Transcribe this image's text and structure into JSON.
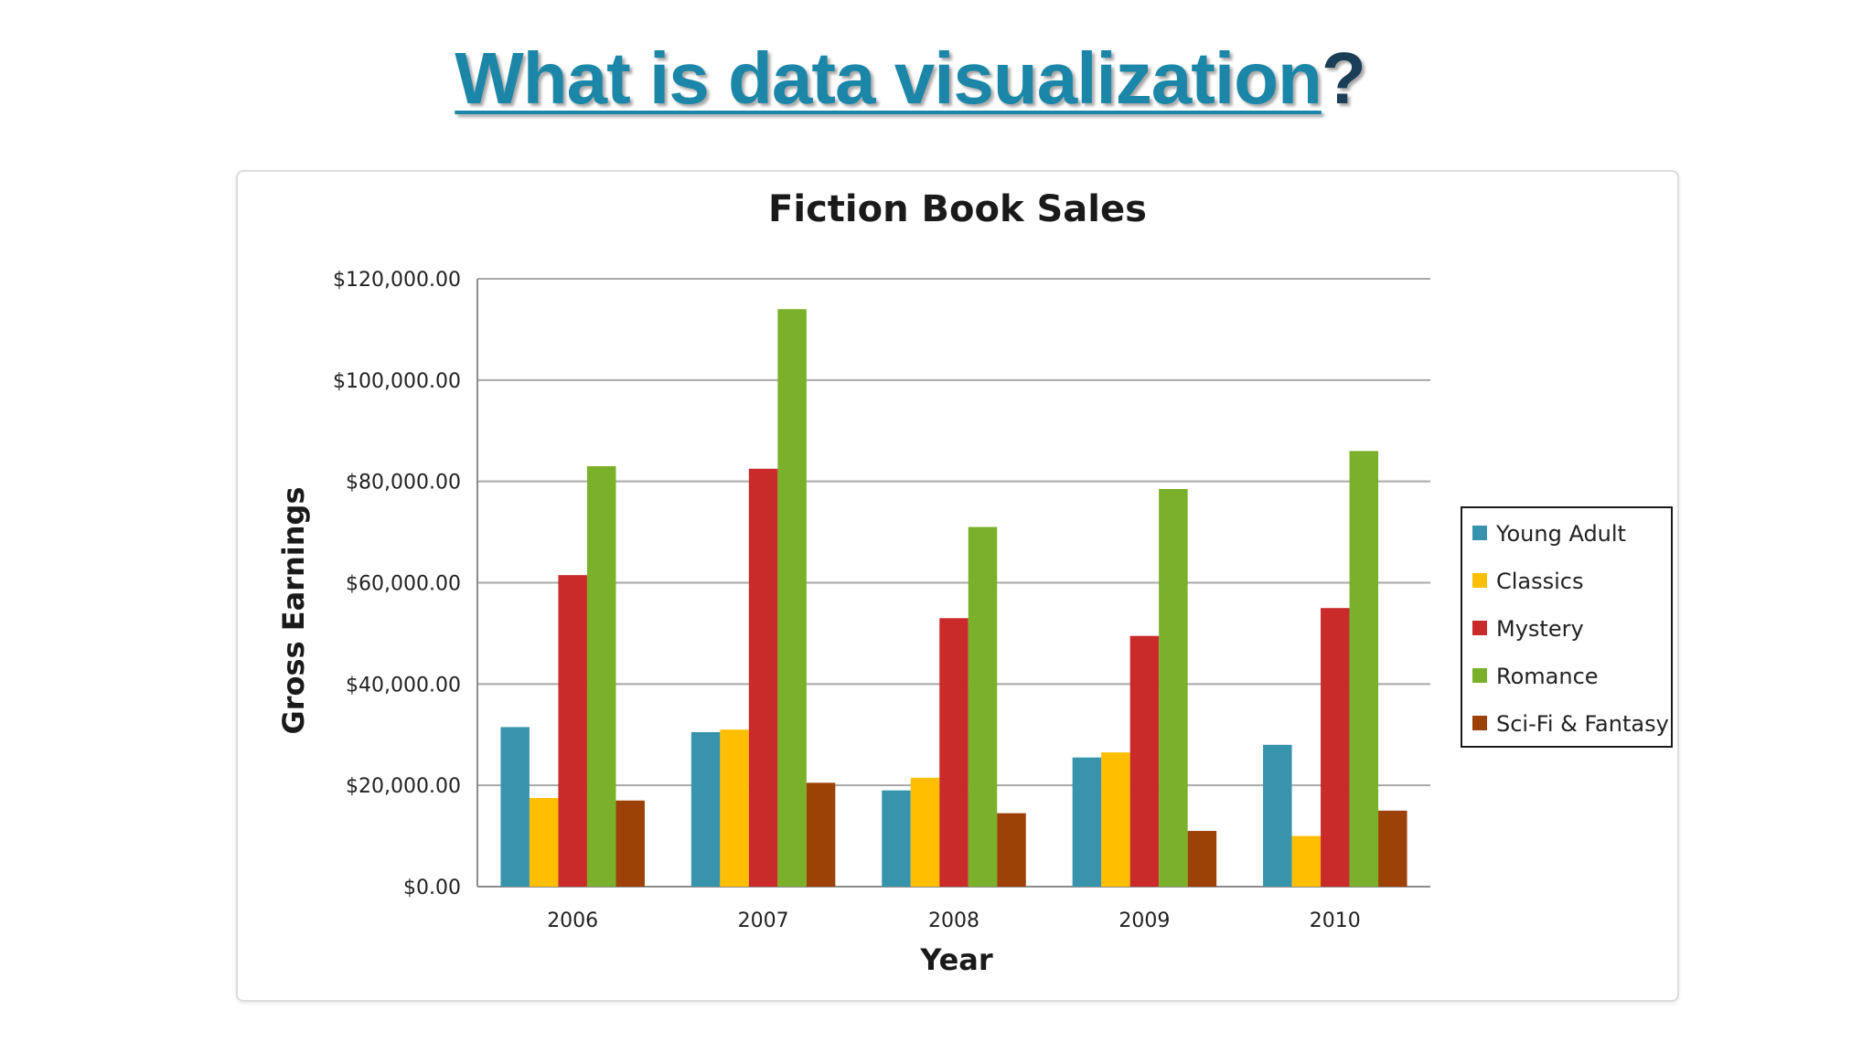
{
  "slide": {
    "title_link": "What is data visualization",
    "title_suffix": "?"
  },
  "chart_data": {
    "type": "bar",
    "title": "Fiction Book Sales",
    "xlabel": "Year",
    "ylabel": "Gross Earnings",
    "categories": [
      "2006",
      "2007",
      "2008",
      "2009",
      "2010"
    ],
    "ylim": [
      0,
      120000
    ],
    "yticks": [
      0,
      20000,
      40000,
      60000,
      80000,
      100000,
      120000
    ],
    "ytick_labels": [
      "$0.00",
      "$20,000.00",
      "$40,000.00",
      "$60,000.00",
      "$80,000.00",
      "$100,000.00",
      "$120,000.00"
    ],
    "grid": true,
    "legend_position": "right",
    "series": [
      {
        "name": "Young Adult",
        "color": "#3894ad",
        "values": [
          31500,
          30500,
          19000,
          25500,
          28000
        ]
      },
      {
        "name": "Classics",
        "color": "#ffbf00",
        "values": [
          17500,
          31000,
          21500,
          26500,
          10000
        ]
      },
      {
        "name": "Mystery",
        "color": "#c92a2a",
        "values": [
          61500,
          82500,
          53000,
          49500,
          55000
        ]
      },
      {
        "name": "Romance",
        "color": "#7bb02a",
        "values": [
          83000,
          114000,
          71000,
          78500,
          86000
        ]
      },
      {
        "name": "Sci-Fi & Fantasy",
        "color": "#9c4206",
        "values": [
          17000,
          20500,
          14500,
          11000,
          15000
        ]
      }
    ]
  }
}
